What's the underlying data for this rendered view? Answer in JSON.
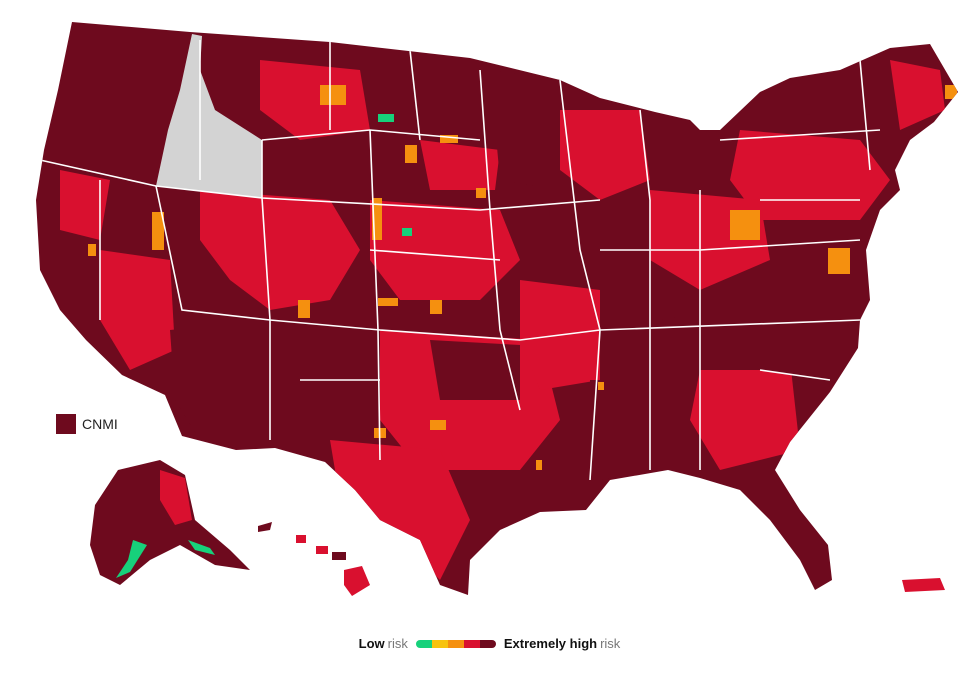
{
  "colors": {
    "extremely_high": "#6e0a1e",
    "very_high": "#d9102f",
    "high": "#f5900f",
    "medium": "#f7c30e",
    "low": "#17d17b",
    "no_data": "#d3d3d3"
  },
  "cnmi_label": "CNMI",
  "legend": {
    "low_bold": "Low",
    "low_suffix": "risk",
    "high_bold": "Extremely high",
    "high_suffix": "risk",
    "scale_colors": [
      "#17d17b",
      "#f7c30e",
      "#f5900f",
      "#d9102f",
      "#6e0a1e"
    ]
  }
}
